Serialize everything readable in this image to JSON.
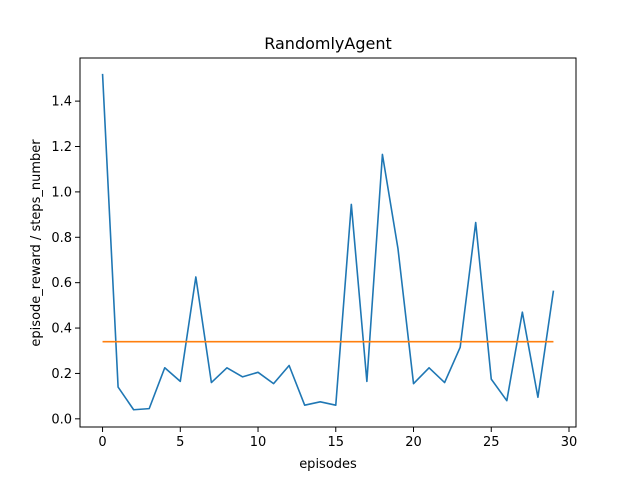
{
  "chart_data": {
    "type": "line",
    "title": "RandomlyAgent",
    "xlabel": "episodes",
    "ylabel": "episode_reward / steps_number",
    "xlim": [
      -1.45,
      30.45
    ],
    "ylim": [
      -0.036,
      1.59
    ],
    "grid": false,
    "xticks": [
      0,
      5,
      10,
      15,
      20,
      25,
      30
    ],
    "yticks": [
      0.0,
      0.2,
      0.4,
      0.6,
      0.8,
      1.0,
      1.2,
      1.4
    ],
    "xtick_labels": [
      "0",
      "5",
      "10",
      "15",
      "20",
      "25",
      "30"
    ],
    "ytick_labels": [
      "0.0",
      "0.2",
      "0.4",
      "0.6",
      "0.8",
      "1.0",
      "1.2",
      "1.4"
    ],
    "series": [
      {
        "color": "#1f77b4",
        "x": [
          0,
          1,
          2,
          3,
          4,
          5,
          6,
          7,
          8,
          9,
          10,
          11,
          12,
          13,
          14,
          15,
          16,
          17,
          18,
          19,
          20,
          21,
          22,
          23,
          24,
          25,
          26,
          27,
          28,
          29
        ],
        "y": [
          1.52,
          0.14,
          0.04,
          0.045,
          0.225,
          0.165,
          0.625,
          0.16,
          0.225,
          0.185,
          0.205,
          0.155,
          0.235,
          0.06,
          0.075,
          0.06,
          0.945,
          0.165,
          1.165,
          0.75,
          0.155,
          0.225,
          0.16,
          0.315,
          0.865,
          0.175,
          0.08,
          0.47,
          0.095,
          0.565
        ]
      },
      {
        "color": "#ff7f0e",
        "x": [
          0,
          29
        ],
        "y": [
          0.34,
          0.34
        ]
      }
    ]
  }
}
